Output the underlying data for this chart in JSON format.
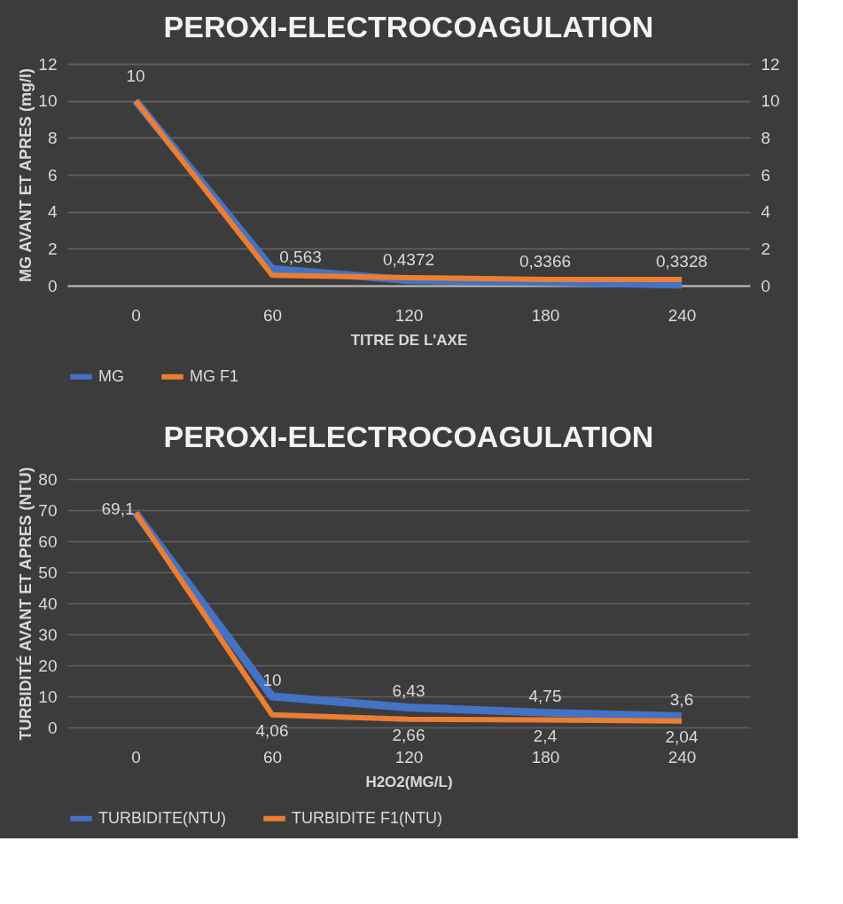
{
  "chart_data": [
    {
      "type": "line",
      "title": "PEROXI-ELECTROCOAGULATION",
      "xlabel": "TITRE DE L'AXE",
      "ylabel": "MG AVANT ET APRES (mg/l)",
      "categories": [
        "0",
        "60",
        "120",
        "180",
        "240"
      ],
      "series": [
        {
          "name": "MG",
          "color": "#4472c4",
          "values": [
            10,
            0.9,
            0.3,
            0.2,
            0.05
          ]
        },
        {
          "name": "MG F1",
          "color": "#ed7d31",
          "axis": "y2",
          "values": [
            10,
            0.563,
            0.4372,
            0.3366,
            0.3328
          ],
          "value_labels": [
            "10",
            "0,563",
            "0,4372",
            "0,3366",
            "0,3328"
          ]
        }
      ],
      "ylim": [
        0,
        12
      ],
      "yticks": [
        0,
        2,
        4,
        6,
        8,
        10,
        12
      ],
      "y2lim": [
        0,
        12
      ],
      "y2ticks": [
        0,
        2,
        4,
        6,
        8,
        10,
        12
      ],
      "grid": "y",
      "legend": "bottom",
      "marker": "none",
      "line_style": "solid"
    },
    {
      "type": "line",
      "title": "PEROXI-ELECTROCOAGULATION",
      "xlabel": "H2O2(MG/L)",
      "ylabel": "TURBIDITÉ AVANT ET APRES (NTU)",
      "categories": [
        "0",
        "60",
        "120",
        "180",
        "240"
      ],
      "series": [
        {
          "name": "TURBIDITE(NTU)",
          "color": "#4472c4",
          "values": [
            69.1,
            10,
            6.43,
            4.75,
            3.6
          ],
          "value_labels": [
            "69,1",
            "10",
            "6,43",
            "4,75",
            "3,6"
          ]
        },
        {
          "name": "TURBIDITE F1(NTU)",
          "color": "#ed7d31",
          "values": [
            69.1,
            4.06,
            2.66,
            2.4,
            2.04
          ],
          "value_labels": [
            null,
            "4,06",
            "2,66",
            "2,4",
            "2,04"
          ]
        }
      ],
      "ylim": [
        0,
        80
      ],
      "yticks": [
        0,
        10,
        20,
        30,
        40,
        50,
        60,
        70,
        80
      ],
      "grid": "y",
      "legend": "bottom",
      "marker": "none",
      "line_style": "solid"
    }
  ]
}
